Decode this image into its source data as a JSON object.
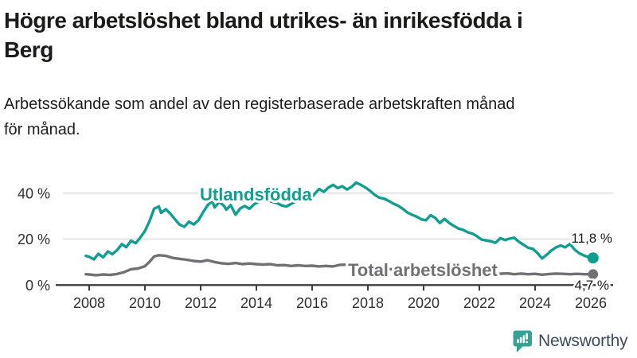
{
  "title": "Högre arbetslöshet bland utrikes- än inrikesfödda i Berg",
  "title_lines": [
    "Högre arbetslöshet bland utrikes- än inrikesfödda i",
    "Berg"
  ],
  "subtitle": "Arbetssökande som andel av den registerbaserade arbetskraften månad för månad.",
  "subtitle_lines": [
    "Arbetssökande som andel av den registerbaserade arbetskraften månad",
    "för månad."
  ],
  "branding": {
    "logo_text": "Newsworthy",
    "logo_icon": "newsworthy-chat-bubble-barchart-icon",
    "icon_color": "#35A394",
    "text_color": "#3D4B5C"
  },
  "colors": {
    "series_foreign_born": "#109E93",
    "series_total": "#717175",
    "grid": "#DEDEDE",
    "axis": "#3D3D42",
    "tick_label": "#2F2F2F",
    "value_label": "#1C1C1C",
    "halo": "#FFFFFF"
  },
  "chart_data": {
    "type": "line",
    "title": "Högre arbetslöshet bland utrikes- än inrikesfödda i Berg",
    "subtitle": "Arbetssökande som andel av den registerbaserade arbetskraften månad för månad.",
    "unit": "%",
    "grid": "horizontal",
    "legend_position": "inline-labels",
    "x_axis": {
      "ticks": [
        2008,
        2010,
        2012,
        2014,
        2016,
        2018,
        2020,
        2022,
        2024,
        2026
      ],
      "labels": [
        "2008",
        "2010",
        "2012",
        "2014",
        "2016",
        "2018",
        "2020",
        "2022",
        "2024",
        "2026"
      ],
      "range": [
        2007.5,
        2026.8
      ]
    },
    "y_axis": {
      "ticks": [
        0,
        20,
        40
      ],
      "labels": [
        "0 %",
        "20 %",
        "40 %"
      ],
      "range": [
        0,
        47
      ]
    },
    "series": [
      {
        "name": "Utlandsfödda",
        "color": "#109E93",
        "end_value": 11.8,
        "end_label": "11,8 %",
        "points": [
          [
            2007.88,
            12.7
          ],
          [
            2008.0,
            12.3
          ],
          [
            2008.17,
            11.2
          ],
          [
            2008.33,
            13.6
          ],
          [
            2008.5,
            12.1
          ],
          [
            2008.67,
            14.6
          ],
          [
            2008.83,
            13.4
          ],
          [
            2009.0,
            15.2
          ],
          [
            2009.17,
            17.8
          ],
          [
            2009.33,
            16.5
          ],
          [
            2009.5,
            19.3
          ],
          [
            2009.67,
            18.2
          ],
          [
            2009.83,
            20.6
          ],
          [
            2010.0,
            23.5
          ],
          [
            2010.17,
            28.0
          ],
          [
            2010.33,
            33.2
          ],
          [
            2010.5,
            34.2
          ],
          [
            2010.58,
            31.4
          ],
          [
            2010.75,
            33.0
          ],
          [
            2010.92,
            31.0
          ],
          [
            2011.08,
            28.6
          ],
          [
            2011.25,
            26.2
          ],
          [
            2011.42,
            25.4
          ],
          [
            2011.58,
            27.6
          ],
          [
            2011.75,
            26.4
          ],
          [
            2011.92,
            28.2
          ],
          [
            2012.08,
            31.5
          ],
          [
            2012.25,
            34.8
          ],
          [
            2012.42,
            36.6
          ],
          [
            2012.5,
            33.8
          ],
          [
            2012.67,
            36.2
          ],
          [
            2012.83,
            34.6
          ],
          [
            2012.92,
            32.8
          ],
          [
            2013.08,
            34.8
          ],
          [
            2013.25,
            30.6
          ],
          [
            2013.42,
            33.4
          ],
          [
            2013.58,
            34.4
          ],
          [
            2013.75,
            33.2
          ],
          [
            2013.92,
            35.2
          ],
          [
            2014.08,
            36.2
          ],
          [
            2014.25,
            37.6
          ],
          [
            2014.42,
            36.8
          ],
          [
            2014.58,
            36.2
          ],
          [
            2014.75,
            35.6
          ],
          [
            2014.92,
            34.6
          ],
          [
            2015.08,
            34.2
          ],
          [
            2015.25,
            35.4
          ],
          [
            2015.42,
            36.4
          ],
          [
            2015.58,
            37.0
          ],
          [
            2015.75,
            36.4
          ],
          [
            2015.92,
            37.2
          ],
          [
            2016.08,
            39.6
          ],
          [
            2016.25,
            41.8
          ],
          [
            2016.42,
            40.6
          ],
          [
            2016.58,
            42.4
          ],
          [
            2016.75,
            43.6
          ],
          [
            2016.92,
            42.2
          ],
          [
            2017.08,
            43.0
          ],
          [
            2017.25,
            41.6
          ],
          [
            2017.42,
            42.8
          ],
          [
            2017.58,
            44.6
          ],
          [
            2017.75,
            43.6
          ],
          [
            2017.92,
            42.4
          ],
          [
            2018.08,
            41.0
          ],
          [
            2018.25,
            39.2
          ],
          [
            2018.42,
            38.0
          ],
          [
            2018.58,
            37.6
          ],
          [
            2018.75,
            36.6
          ],
          [
            2018.92,
            35.4
          ],
          [
            2019.08,
            34.6
          ],
          [
            2019.25,
            33.2
          ],
          [
            2019.42,
            31.6
          ],
          [
            2019.58,
            30.6
          ],
          [
            2019.75,
            29.8
          ],
          [
            2019.92,
            28.6
          ],
          [
            2020.08,
            28.2
          ],
          [
            2020.25,
            30.4
          ],
          [
            2020.42,
            29.2
          ],
          [
            2020.58,
            27.0
          ],
          [
            2020.75,
            28.8
          ],
          [
            2020.92,
            27.0
          ],
          [
            2021.08,
            25.8
          ],
          [
            2021.25,
            24.6
          ],
          [
            2021.42,
            24.0
          ],
          [
            2021.58,
            23.0
          ],
          [
            2021.75,
            22.4
          ],
          [
            2021.92,
            21.2
          ],
          [
            2022.08,
            19.8
          ],
          [
            2022.25,
            19.4
          ],
          [
            2022.42,
            19.0
          ],
          [
            2022.58,
            18.4
          ],
          [
            2022.75,
            20.4
          ],
          [
            2022.92,
            19.6
          ],
          [
            2023.08,
            20.2
          ],
          [
            2023.25,
            20.6
          ],
          [
            2023.42,
            18.8
          ],
          [
            2023.58,
            17.6
          ],
          [
            2023.75,
            16.2
          ],
          [
            2023.92,
            15.8
          ],
          [
            2024.08,
            14.0
          ],
          [
            2024.25,
            11.6
          ],
          [
            2024.42,
            13.2
          ],
          [
            2024.58,
            15.0
          ],
          [
            2024.75,
            16.4
          ],
          [
            2024.92,
            17.2
          ],
          [
            2025.08,
            16.4
          ],
          [
            2025.25,
            17.9
          ],
          [
            2025.42,
            15.4
          ],
          [
            2025.58,
            13.9
          ],
          [
            2025.75,
            12.9
          ],
          [
            2025.92,
            12.1
          ],
          [
            2026.08,
            11.8
          ]
        ]
      },
      {
        "name": "Total arbetslöshet",
        "color": "#717175",
        "end_value": 4.7,
        "end_label": "4,7 %",
        "points": [
          [
            2007.88,
            4.7
          ],
          [
            2008.0,
            4.6
          ],
          [
            2008.25,
            4.3
          ],
          [
            2008.5,
            4.6
          ],
          [
            2008.75,
            4.4
          ],
          [
            2009.0,
            4.8
          ],
          [
            2009.25,
            5.6
          ],
          [
            2009.5,
            6.9
          ],
          [
            2009.75,
            7.2
          ],
          [
            2010.0,
            8.2
          ],
          [
            2010.17,
            10.2
          ],
          [
            2010.33,
            12.4
          ],
          [
            2010.5,
            13.0
          ],
          [
            2010.75,
            12.7
          ],
          [
            2011.0,
            11.8
          ],
          [
            2011.25,
            11.4
          ],
          [
            2011.5,
            11.0
          ],
          [
            2011.75,
            10.5
          ],
          [
            2012.0,
            10.2
          ],
          [
            2012.25,
            10.8
          ],
          [
            2012.5,
            10.0
          ],
          [
            2012.75,
            9.5
          ],
          [
            2013.0,
            9.2
          ],
          [
            2013.25,
            9.6
          ],
          [
            2013.5,
            9.1
          ],
          [
            2013.75,
            9.4
          ],
          [
            2014.0,
            9.1
          ],
          [
            2014.25,
            8.9
          ],
          [
            2014.5,
            9.1
          ],
          [
            2014.75,
            8.6
          ],
          [
            2015.0,
            8.7
          ],
          [
            2015.25,
            8.3
          ],
          [
            2015.5,
            8.6
          ],
          [
            2015.75,
            8.3
          ],
          [
            2016.0,
            8.4
          ],
          [
            2016.25,
            8.1
          ],
          [
            2016.5,
            8.3
          ],
          [
            2016.75,
            8.1
          ],
          [
            2017.0,
            8.8
          ],
          [
            2017.25,
            8.9
          ],
          [
            2017.5,
            8.5
          ],
          [
            2017.75,
            8.2
          ],
          [
            2018.0,
            7.8
          ],
          [
            2018.33,
            7.4
          ],
          [
            2018.67,
            7.1
          ],
          [
            2019.0,
            6.7
          ],
          [
            2019.33,
            6.4
          ],
          [
            2019.67,
            6.2
          ],
          [
            2020.0,
            6.4
          ],
          [
            2020.33,
            6.9
          ],
          [
            2020.67,
            6.7
          ],
          [
            2021.0,
            6.3
          ],
          [
            2021.33,
            5.9
          ],
          [
            2021.67,
            5.6
          ],
          [
            2022.0,
            5.3
          ],
          [
            2022.33,
            5.1
          ],
          [
            2022.67,
            4.9
          ],
          [
            2023.0,
            5.1
          ],
          [
            2023.25,
            4.7
          ],
          [
            2023.5,
            5.0
          ],
          [
            2023.75,
            4.7
          ],
          [
            2024.0,
            4.9
          ],
          [
            2024.25,
            4.5
          ],
          [
            2024.5,
            4.8
          ],
          [
            2024.75,
            5.0
          ],
          [
            2025.0,
            4.9
          ],
          [
            2025.25,
            4.7
          ],
          [
            2025.5,
            4.9
          ],
          [
            2025.75,
            4.7
          ],
          [
            2026.08,
            4.7
          ]
        ]
      }
    ]
  }
}
